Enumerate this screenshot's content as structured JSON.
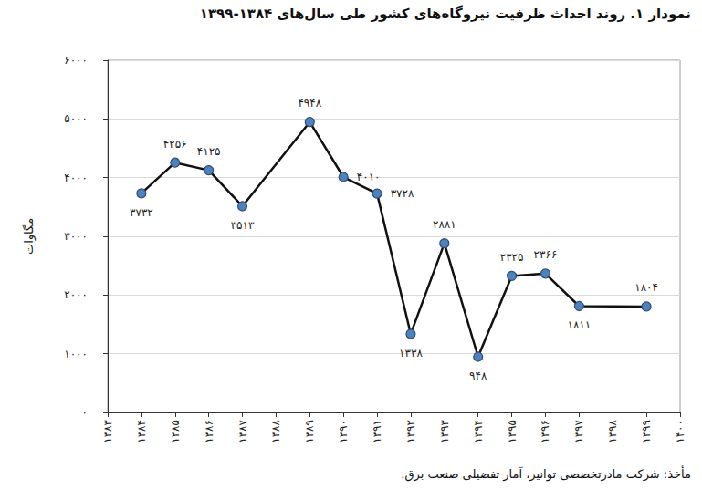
{
  "chart_data": {
    "type": "line",
    "title": "نمودار ۱. روند احداث ظرفیت نیروگاه‌های کشور طی سال‌های ۱۳۸۴-۱۳۹۹",
    "source": "مأخذ: شرکت مادرتخصصی توانیر، آمار تفضیلی صنعت برق.",
    "y_label": "مگاوات",
    "categories": [
      "۱۳۸۳",
      "۱۳۸۴",
      "۱۳۸۵",
      "۱۳۸۶",
      "۱۳۸۷",
      "۱۳۸۸",
      "۱۳۸۹",
      "۱۳۹۰",
      "۱۳۹۱",
      "۱۳۹۲",
      "۱۳۹۳",
      "۱۳۹۴",
      "۱۳۹۵",
      "۱۳۹۶",
      "۱۳۹۷",
      "۱۳۹۸",
      "۱۳۹۹",
      "۱۴۰۰"
    ],
    "values": [
      null,
      3732,
      4256,
      4125,
      3513,
      null,
      4948,
      4010,
      3728,
      1338,
      2881,
      948,
      2325,
      2366,
      1811,
      null,
      1804,
      null
    ],
    "value_labels": [
      null,
      "۳۷۳۲",
      "۴۲۵۶",
      "۴۱۲۵",
      "۳۵۱۳",
      null,
      "۴۹۴۸",
      "۴۰۱۰",
      "۳۷۲۸",
      "۱۳۳۸",
      "۲۸۸۱",
      "۹۴۸",
      "۲۳۲۵",
      "۲۳۶۶",
      "۱۸۱۱",
      null,
      "۱۸۰۴",
      null
    ],
    "ylim": [
      0,
      6000
    ],
    "yticks": [
      {
        "value": 0,
        "label": "۰"
      },
      {
        "value": 1000,
        "label": "۱۰۰۰"
      },
      {
        "value": 2000,
        "label": "۲۰۰۰"
      },
      {
        "value": 3000,
        "label": "۳۰۰۰"
      },
      {
        "value": 4000,
        "label": "۴۰۰۰"
      },
      {
        "value": 5000,
        "label": "۵۰۰۰"
      },
      {
        "value": 6000,
        "label": "۶۰۰۰"
      }
    ],
    "grid": true,
    "data_labels": true,
    "color": "#111111",
    "marker": "circle"
  }
}
